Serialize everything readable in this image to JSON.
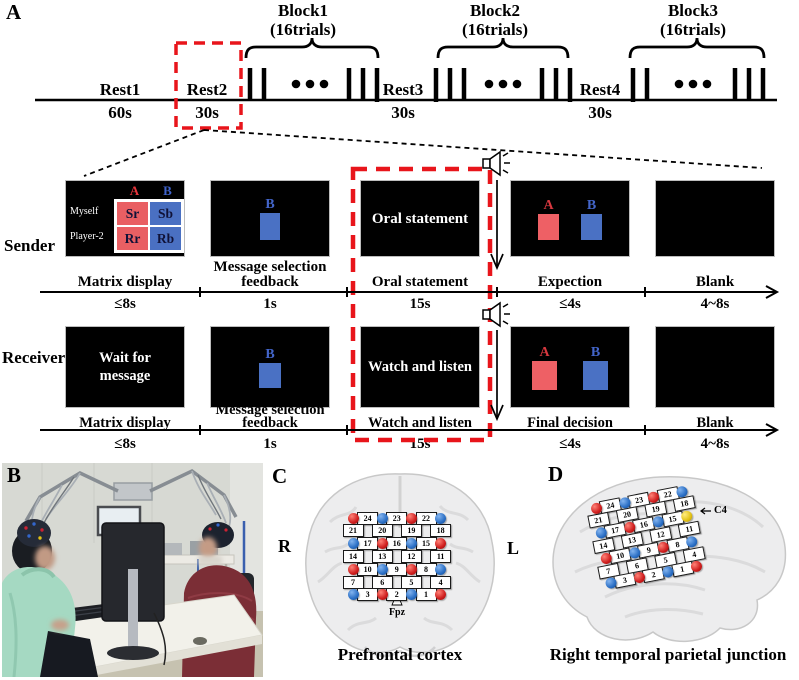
{
  "figure": {
    "panel_a_label": "A",
    "panel_b_label": "B",
    "panel_c_label": "C",
    "panel_d_label": "D"
  },
  "timeline": {
    "blocks": [
      {
        "title": "Block1",
        "subtitle": "(16trials)"
      },
      {
        "title": "Block2",
        "subtitle": "(16trials)"
      },
      {
        "title": "Block3",
        "subtitle": "(16trials)"
      }
    ],
    "rests": [
      {
        "name": "Rest1",
        "duration": "60s"
      },
      {
        "name": "Rest2",
        "duration": "30s"
      },
      {
        "name": "Rest3",
        "duration": "30s"
      },
      {
        "name": "Rest4",
        "duration": "30s"
      }
    ],
    "ellipsis": "•••"
  },
  "sender": {
    "row_label": "Sender",
    "phases": [
      {
        "label": "Matrix display",
        "duration": "≤8s"
      },
      {
        "label": "Message selection feedback",
        "duration": "1s"
      },
      {
        "label": "Oral statement",
        "duration": "15s"
      },
      {
        "label": "Expection",
        "duration": "≤4s"
      },
      {
        "label": "Blank",
        "duration": "4~8s"
      }
    ],
    "screens": {
      "oral": "Oral statement"
    }
  },
  "receiver": {
    "row_label": "Receiver",
    "phases": [
      {
        "label": "Matrix display",
        "duration": "≤8s"
      },
      {
        "label": "Message selection feedback",
        "duration": "1s"
      },
      {
        "label": "Watch and listen",
        "duration": "15s"
      },
      {
        "label": "Final decision",
        "duration": "≤4s"
      },
      {
        "label": "Blank",
        "duration": "4~8s"
      }
    ],
    "screens": {
      "wait": "Wait for message",
      "watch": "Watch and listen"
    }
  },
  "matrix": {
    "col_headers": [
      "A",
      "B"
    ],
    "row_headers": [
      "Myself",
      "Player-2"
    ],
    "cells": [
      [
        "Sr",
        "Sb"
      ],
      [
        "Rr",
        "Rb"
      ]
    ]
  },
  "stimuli": {
    "option_a": "A",
    "option_b": "B"
  },
  "panel_c": {
    "left_label": "R",
    "right_label": "L",
    "landmark": "Fpz",
    "caption": "Prefrontal cortex"
  },
  "panel_d": {
    "landmark": "C4",
    "caption": "Right temporal parietal junction",
    "c4_override": {
      "row": 2,
      "col": 6,
      "color": "yellow"
    }
  },
  "optode_grid": {
    "rows": [
      [
        {
          "c": 0,
          "t": "dot",
          "v": "red"
        },
        {
          "c": 1,
          "t": "sq",
          "v": "24"
        },
        {
          "c": 2,
          "t": "dot",
          "v": "blue"
        },
        {
          "c": 3,
          "t": "sq",
          "v": "23"
        },
        {
          "c": 4,
          "t": "dot",
          "v": "red"
        },
        {
          "c": 5,
          "t": "sq",
          "v": "22"
        },
        {
          "c": 6,
          "t": "dot",
          "v": "blue"
        }
      ],
      [
        {
          "c": 0,
          "t": "sq",
          "v": "21"
        },
        {
          "c": 2,
          "t": "sq",
          "v": "20"
        },
        {
          "c": 4,
          "t": "sq",
          "v": "19"
        },
        {
          "c": 6,
          "t": "sq",
          "v": "18"
        }
      ],
      [
        {
          "c": 0,
          "t": "dot",
          "v": "blue"
        },
        {
          "c": 1,
          "t": "sq",
          "v": "17"
        },
        {
          "c": 2,
          "t": "dot",
          "v": "red"
        },
        {
          "c": 3,
          "t": "sq",
          "v": "16"
        },
        {
          "c": 4,
          "t": "dot",
          "v": "blue"
        },
        {
          "c": 5,
          "t": "sq",
          "v": "15"
        },
        {
          "c": 6,
          "t": "dot",
          "v": "red"
        }
      ],
      [
        {
          "c": 0,
          "t": "sq",
          "v": "14"
        },
        {
          "c": 2,
          "t": "sq",
          "v": "13"
        },
        {
          "c": 4,
          "t": "sq",
          "v": "12"
        },
        {
          "c": 6,
          "t": "sq",
          "v": "11"
        }
      ],
      [
        {
          "c": 0,
          "t": "dot",
          "v": "red"
        },
        {
          "c": 1,
          "t": "sq",
          "v": "10"
        },
        {
          "c": 2,
          "t": "dot",
          "v": "blue"
        },
        {
          "c": 3,
          "t": "sq",
          "v": "9"
        },
        {
          "c": 4,
          "t": "dot",
          "v": "red"
        },
        {
          "c": 5,
          "t": "sq",
          "v": "8"
        },
        {
          "c": 6,
          "t": "dot",
          "v": "blue"
        }
      ],
      [
        {
          "c": 0,
          "t": "sq",
          "v": "7"
        },
        {
          "c": 2,
          "t": "sq",
          "v": "6"
        },
        {
          "c": 4,
          "t": "sq",
          "v": "5"
        },
        {
          "c": 6,
          "t": "sq",
          "v": "4"
        }
      ],
      [
        {
          "c": 0,
          "t": "dot",
          "v": "blue"
        },
        {
          "c": 1,
          "t": "sq",
          "v": "3"
        },
        {
          "c": 2,
          "t": "dot",
          "v": "red"
        },
        {
          "c": 3,
          "t": "sq",
          "v": "2"
        },
        {
          "c": 4,
          "t": "dot",
          "v": "blue"
        },
        {
          "c": 5,
          "t": "sq",
          "v": "1"
        },
        {
          "c": 6,
          "t": "dot",
          "v": "red"
        }
      ]
    ]
  },
  "colors": {
    "dashed_red": "#e8151b",
    "square_red": "#ee6065",
    "square_blue": "#4a71c4",
    "dot_red": "#ce1d1d",
    "dot_blue": "#2a6ec4",
    "dot_yellow": "#e2c114"
  }
}
